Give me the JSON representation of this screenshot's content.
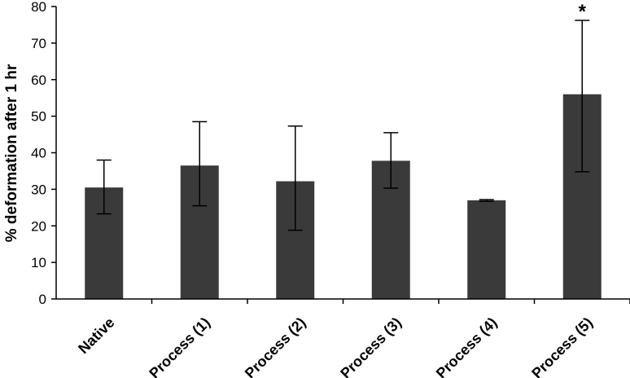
{
  "chart_data": {
    "type": "bar",
    "title": "",
    "xlabel": "",
    "ylabel": "% deformation after 1 hr",
    "ylim": [
      0,
      80
    ],
    "yticks": [
      "0",
      "10",
      "20",
      "30",
      "40",
      "50",
      "60",
      "70",
      "80"
    ],
    "categories": [
      "Native",
      "Process (1)",
      "Process (2)",
      "Process (3)",
      "Process (4)",
      "Process (5)"
    ],
    "values": [
      30.5,
      36.5,
      32.2,
      37.8,
      27.0,
      56.0
    ],
    "error_low": [
      23.3,
      25.5,
      18.8,
      30.3,
      26.7,
      34.8
    ],
    "error_high": [
      38.0,
      48.5,
      47.3,
      45.5,
      27.2,
      76.2
    ],
    "annotations": [
      {
        "category": "Process (5)",
        "text": "*"
      }
    ],
    "bar_color": "#3a3a3a",
    "grid": false,
    "legend": "none"
  }
}
